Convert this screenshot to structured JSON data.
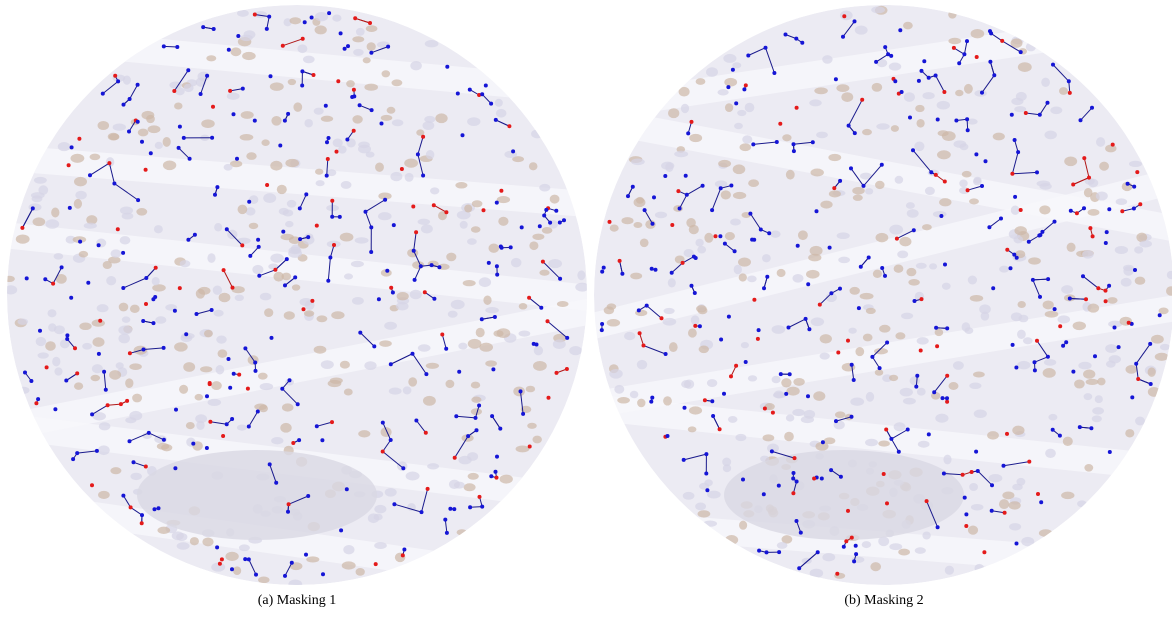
{
  "figure": {
    "panels": [
      {
        "caption": "(a) Masking 1"
      },
      {
        "caption": "(b) Masking 2"
      }
    ]
  }
}
